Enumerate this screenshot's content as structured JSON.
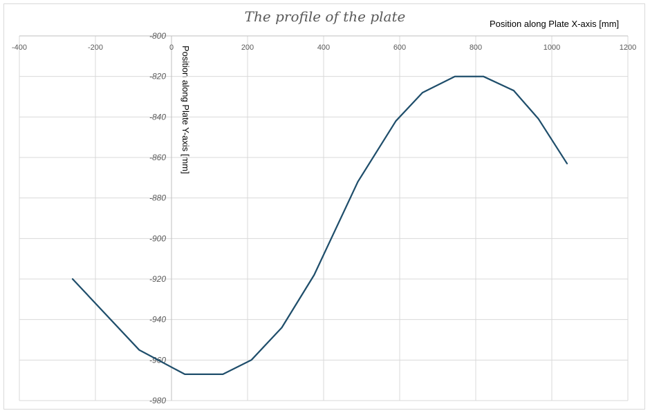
{
  "chart_data": {
    "type": "line",
    "title": "The profile of the plate",
    "xlabel": "Position along Plate X-axis [mm]",
    "ylabel": "Position along Plate Y-axis [mm]",
    "xlim": [
      -400,
      1200
    ],
    "ylim": [
      -980,
      -800
    ],
    "x_ticks": [
      -400,
      -200,
      0,
      200,
      400,
      600,
      800,
      1000,
      1200
    ],
    "y_ticks": [
      -800,
      -820,
      -840,
      -860,
      -880,
      -900,
      -920,
      -940,
      -960,
      -980
    ],
    "grid": true,
    "x_axis_position": "top",
    "y_axis_at_x": 0,
    "series": [
      {
        "color": "#1f4e6b",
        "x": [
          -260,
          -85,
          35,
          135,
          210,
          290,
          375,
          490,
          590,
          660,
          745,
          820,
          900,
          965,
          1040
        ],
        "y": [
          -920,
          -955,
          -967,
          -967,
          -960,
          -944,
          -918,
          -872,
          -842,
          -828,
          -820,
          -820,
          -827,
          -841,
          -863
        ]
      }
    ]
  }
}
